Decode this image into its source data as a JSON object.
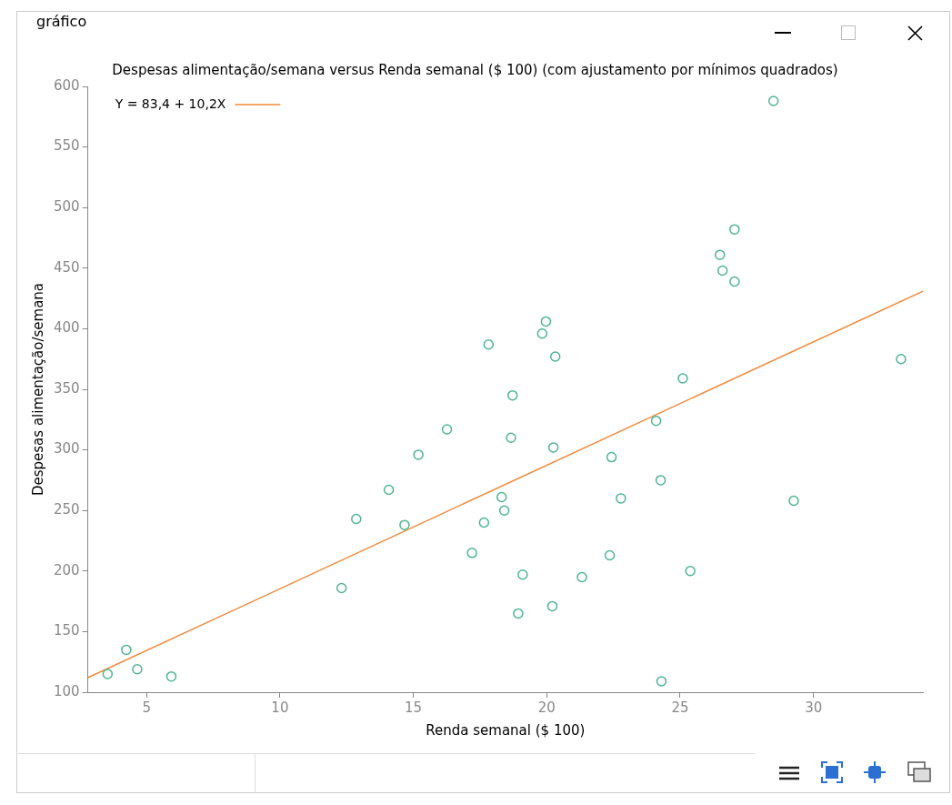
{
  "chart_data": {
    "type": "scatter",
    "title": "Despesas alimentação/semana versus Renda semanal ($ 100) (com ajustamento por mínimos quadrados)",
    "xlabel": "Renda semanal ($ 100)",
    "ylabel": "Despesas alimentação/semana",
    "annotations": [
      "gráfico"
    ],
    "xlim": [
      2.8,
      34.1
    ],
    "xticks": [
      5,
      10,
      15,
      20,
      25,
      30
    ],
    "ylim": [
      100,
      600
    ],
    "yticks": [
      100,
      150,
      200,
      250,
      300,
      350,
      400,
      450,
      500,
      550,
      600
    ],
    "grid": false,
    "legend": "top left",
    "marker": "circle",
    "series": [
      {
        "color": "#4fb58f",
        "x": [
          3.54,
          4.24,
          4.65,
          5.93,
          12.31,
          12.86,
          14.08,
          14.67,
          15.19,
          16.26,
          17.2,
          17.65,
          17.82,
          18.31,
          18.41,
          18.66,
          18.72,
          18.93,
          19.1,
          19.83,
          19.97,
          20.25,
          20.21,
          20.32,
          21.32,
          22.36,
          22.43,
          22.78,
          24.1,
          24.27,
          24.3,
          25.1,
          25.38,
          26.49,
          26.59,
          27.04,
          27.04,
          28.5,
          29.26,
          33.28
        ],
        "values": [
          115,
          135,
          119,
          113,
          186,
          243,
          267,
          238,
          296,
          317,
          215,
          240,
          387,
          261,
          250,
          310,
          345,
          165,
          197,
          396,
          406,
          302,
          171,
          377,
          195,
          213,
          294,
          260,
          324,
          275,
          109,
          359,
          200,
          461,
          448,
          482,
          439,
          588,
          258,
          375
        ]
      },
      {
        "type": "line",
        "name": "Y = 83,4 + 10,2X",
        "color": "#ef8a3c",
        "marker": "none",
        "x": [
          2.8,
          34.1
        ],
        "values": [
          112,
          431
        ]
      }
    ]
  }
}
